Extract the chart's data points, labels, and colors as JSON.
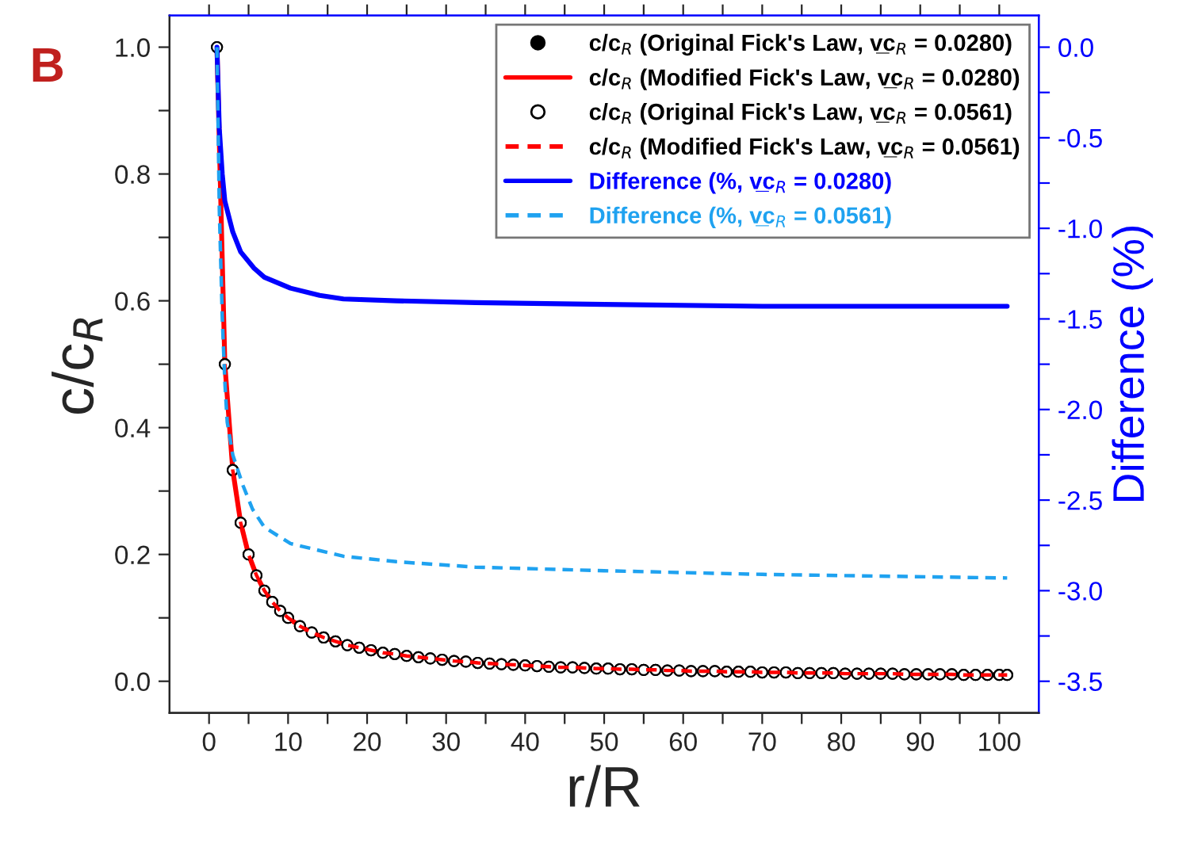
{
  "chart_data": {
    "type": "line",
    "title": "B",
    "xlabel": "r/R",
    "ylabel": "c/c$_{R}$",
    "y2label": "Difference (%)",
    "x": [
      1,
      2,
      3,
      4,
      5,
      6,
      7,
      8,
      9,
      10,
      11.5,
      13,
      14.5,
      16,
      17.5,
      19,
      20.5,
      22,
      23.5,
      25,
      26.5,
      28,
      29.5,
      31,
      32.5,
      34,
      35.5,
      37,
      38.5,
      40,
      41.5,
      43,
      44.5,
      46,
      47.5,
      49,
      50.5,
      52,
      53.5,
      55,
      56.5,
      58,
      59.5,
      61,
      62.5,
      64,
      65.5,
      67,
      68.5,
      70,
      71.5,
      73,
      74.5,
      76,
      77.5,
      79,
      80.5,
      82,
      83.5,
      85,
      86.5,
      88,
      89.5,
      91,
      92.5,
      94,
      95.5,
      97,
      98.5,
      100,
      101
    ],
    "series": [
      {
        "name": "c/c$_{R}$ (Original Fick's Law, v̲c$_{R}$ = 0.0280)",
        "type": "scatter",
        "marker": "circle",
        "color": "#000000",
        "values": [
          1.0,
          0.5,
          0.333,
          0.25,
          0.2,
          0.167,
          0.143,
          0.125,
          0.111,
          0.1,
          0.087,
          0.077,
          0.069,
          0.063,
          0.057,
          0.053,
          0.049,
          0.045,
          0.043,
          0.04,
          0.038,
          0.036,
          0.034,
          0.032,
          0.031,
          0.029,
          0.028,
          0.027,
          0.026,
          0.025,
          0.024,
          0.023,
          0.022,
          0.022,
          0.021,
          0.02,
          0.02,
          0.019,
          0.019,
          0.018,
          0.018,
          0.017,
          0.017,
          0.016,
          0.016,
          0.016,
          0.015,
          0.015,
          0.015,
          0.014,
          0.014,
          0.014,
          0.013,
          0.013,
          0.013,
          0.013,
          0.012,
          0.012,
          0.012,
          0.012,
          0.012,
          0.011,
          0.011,
          0.011,
          0.011,
          0.011,
          0.01,
          0.01,
          0.01,
          0.01,
          0.01
        ]
      },
      {
        "name": "c/c$_{R}$ (Modified Fick's Law, v̲c$_{R}$ = 0.0280)",
        "line_style": "solid",
        "color": "#ff0000",
        "values": [
          1.0,
          0.5,
          0.333,
          0.25,
          0.2,
          0.167,
          0.143,
          0.125,
          0.111,
          0.1,
          0.087,
          0.077,
          0.069,
          0.063,
          0.057,
          0.053,
          0.049,
          0.045,
          0.043,
          0.04,
          0.038,
          0.036,
          0.034,
          0.032,
          0.031,
          0.029,
          0.028,
          0.027,
          0.026,
          0.025,
          0.024,
          0.023,
          0.022,
          0.022,
          0.021,
          0.02,
          0.02,
          0.019,
          0.019,
          0.018,
          0.018,
          0.017,
          0.017,
          0.016,
          0.016,
          0.016,
          0.015,
          0.015,
          0.015,
          0.014,
          0.014,
          0.014,
          0.013,
          0.013,
          0.013,
          0.013,
          0.012,
          0.012,
          0.012,
          0.012,
          0.012,
          0.011,
          0.011,
          0.011,
          0.011,
          0.011,
          0.01,
          0.01,
          0.01,
          0.01,
          0.01
        ]
      },
      {
        "name": "c/c$_{R}$ (Original Fick's Law, v̲c$_{R}$ = 0.0561)",
        "type": "scatter",
        "marker": "open circle",
        "color": "#000000",
        "values": [
          1.0,
          0.5,
          0.333,
          0.25,
          0.2,
          0.167,
          0.143,
          0.125,
          0.111,
          0.1,
          0.087,
          0.077,
          0.069,
          0.063,
          0.057,
          0.053,
          0.049,
          0.045,
          0.043,
          0.04,
          0.038,
          0.036,
          0.034,
          0.032,
          0.031,
          0.029,
          0.028,
          0.027,
          0.026,
          0.025,
          0.024,
          0.023,
          0.022,
          0.022,
          0.021,
          0.02,
          0.02,
          0.019,
          0.019,
          0.018,
          0.018,
          0.017,
          0.017,
          0.016,
          0.016,
          0.016,
          0.015,
          0.015,
          0.015,
          0.014,
          0.014,
          0.014,
          0.013,
          0.013,
          0.013,
          0.013,
          0.012,
          0.012,
          0.012,
          0.012,
          0.012,
          0.011,
          0.011,
          0.011,
          0.011,
          0.011,
          0.01,
          0.01,
          0.01,
          0.01,
          0.01
        ]
      },
      {
        "name": "c/c$_{R}$ (Modified Fick's Law, v̲c$_{R}$ = 0.0561)",
        "line_style": "dashed",
        "color": "#ff0000",
        "values": [
          1.0,
          0.5,
          0.333,
          0.25,
          0.2,
          0.167,
          0.143,
          0.125,
          0.111,
          0.1,
          0.087,
          0.077,
          0.069,
          0.063,
          0.057,
          0.053,
          0.049,
          0.045,
          0.043,
          0.04,
          0.038,
          0.036,
          0.034,
          0.032,
          0.031,
          0.029,
          0.028,
          0.027,
          0.026,
          0.025,
          0.024,
          0.023,
          0.022,
          0.022,
          0.021,
          0.02,
          0.02,
          0.019,
          0.019,
          0.018,
          0.018,
          0.017,
          0.017,
          0.016,
          0.016,
          0.016,
          0.015,
          0.015,
          0.015,
          0.014,
          0.014,
          0.014,
          0.013,
          0.013,
          0.013,
          0.013,
          0.012,
          0.012,
          0.012,
          0.012,
          0.012,
          0.011,
          0.011,
          0.011,
          0.011,
          0.011,
          0.01,
          0.01,
          0.01,
          0.01,
          0.01
        ]
      },
      {
        "name": "Difference (%, v̲c$_{R}$ = 0.0280)",
        "axis": "y2",
        "line_style": "solid",
        "color": "#0000ff",
        "x": [
          1,
          1.3,
          1.67,
          2,
          3,
          4,
          5.7,
          7,
          10.3,
          14,
          17,
          23.7,
          33.7,
          50,
          70,
          101
        ],
        "values": [
          0,
          -0.45,
          -0.7,
          -0.85,
          -1.02,
          -1.13,
          -1.22,
          -1.27,
          -1.33,
          -1.37,
          -1.39,
          -1.4,
          -1.41,
          -1.42,
          -1.43,
          -1.43
        ]
      },
      {
        "name": "Difference (%, v̲c$_{R}$ = 0.0561)",
        "axis": "y2",
        "line_style": "dashed",
        "color": "#1fa2f0",
        "x": [
          1,
          1.3,
          1.67,
          2,
          2.3,
          3,
          4.3,
          5.5,
          7,
          10.3,
          17,
          23.7,
          33.7,
          50,
          70,
          101
        ],
        "values": [
          0,
          -0.9,
          -1.49,
          -1.85,
          -2.07,
          -2.25,
          -2.42,
          -2.55,
          -2.65,
          -2.74,
          -2.81,
          -2.84,
          -2.87,
          -2.89,
          -2.91,
          -2.93
        ]
      }
    ],
    "xlim": [
      -5,
      105
    ],
    "xticks": [
      0,
      {
        "value": 5,
        "label": null
      },
      10,
      {
        "value": 15,
        "label": null
      },
      20,
      {
        "value": 25,
        "label": null
      },
      30,
      {
        "value": 35,
        "label": null
      },
      40,
      {
        "value": 45,
        "label": null
      },
      50,
      {
        "value": 55,
        "label": null
      },
      60,
      {
        "value": 65,
        "label": null
      },
      70,
      {
        "value": 75,
        "label": null
      },
      80,
      {
        "value": 85,
        "label": null
      },
      90,
      {
        "value": 95,
        "label": null
      },
      100
    ],
    "ylim": [
      -0.05,
      1.05
    ],
    "yticks": [
      {
        "value": 0,
        "label": "0.0"
      },
      {
        "value": 0.1,
        "label": null
      },
      {
        "value": 0.2,
        "label": "0.2"
      },
      {
        "value": 0.3,
        "label": null
      },
      {
        "value": 0.4,
        "label": "0.4"
      },
      {
        "value": 0.5,
        "label": null
      },
      {
        "value": 0.6,
        "label": "0.6"
      },
      {
        "value": 0.7,
        "label": null
      },
      {
        "value": 0.8,
        "label": "0.8"
      },
      {
        "value": 0.9,
        "label": null
      },
      {
        "value": 1.0,
        "label": "1.0"
      }
    ],
    "y2lim": [
      -3.675,
      0.175
    ],
    "y2ticks": [
      {
        "value": -3.5,
        "label": "-3.5"
      },
      {
        "value": -3.25,
        "label": null
      },
      {
        "value": -3.0,
        "label": "-3.0"
      },
      {
        "value": -2.75,
        "label": null
      },
      {
        "value": -2.5,
        "label": "-2.5"
      },
      {
        "value": -2.25,
        "label": null
      },
      {
        "value": -2.0,
        "label": "-2.0"
      },
      {
        "value": -1.75,
        "label": null
      },
      {
        "value": -1.5,
        "label": "-1.5"
      },
      {
        "value": -1.25,
        "label": null
      },
      {
        "value": -1.0,
        "label": "-1.0"
      },
      {
        "value": -0.75,
        "label": null
      },
      {
        "value": -0.5,
        "label": "-0.5"
      },
      {
        "value": -0.25,
        "label": null
      },
      {
        "value": 0.0,
        "label": "0.0"
      }
    ],
    "grid": false,
    "legend": "top right"
  }
}
